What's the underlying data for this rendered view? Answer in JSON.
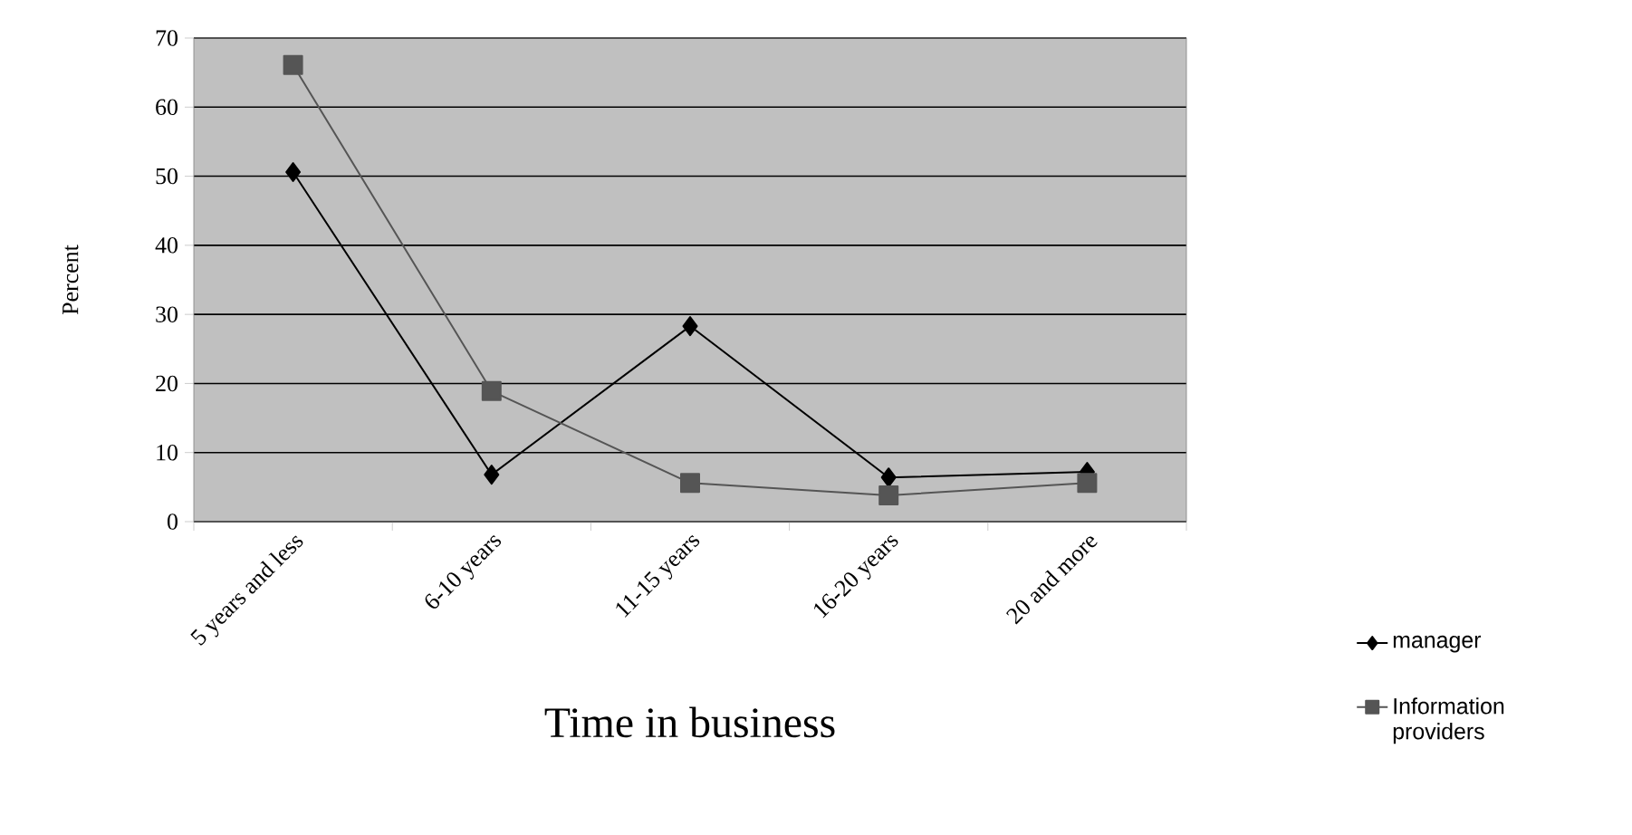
{
  "chart_data": {
    "type": "line",
    "xlabel": "Time in business",
    "ylabel": "Percent",
    "categories": [
      "5 years and less",
      "6-10 years",
      "11-15 years",
      "16-20 years",
      "20 and more"
    ],
    "series": [
      {
        "name": "manager",
        "color": "#000000",
        "marker": "diamond",
        "values": [
          50.6,
          6.8,
          28.3,
          6.4,
          7.2
        ]
      },
      {
        "name": "Information providers",
        "color": "#555555",
        "marker": "square",
        "values": [
          66.1,
          18.9,
          5.6,
          3.8,
          5.6
        ]
      }
    ],
    "ylim": [
      0,
      70
    ],
    "yticks": [
      0,
      10,
      20,
      30,
      40,
      50,
      60,
      70
    ],
    "grid": "y",
    "legend": "right",
    "line_style": "solid"
  }
}
